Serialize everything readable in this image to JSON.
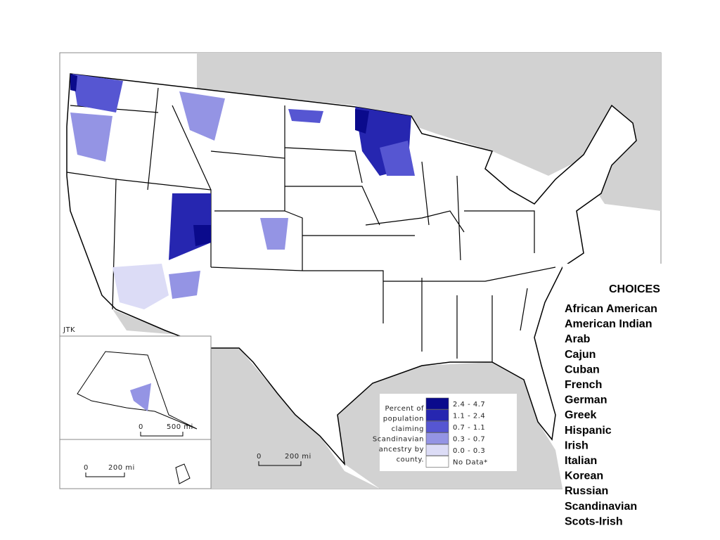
{
  "map": {
    "credit": "JTK",
    "legend": {
      "title_lines": [
        "Percent of",
        "population",
        "claiming",
        "Scandinavian",
        "ancestry by",
        "county."
      ],
      "items": [
        {
          "label": "2.4 - 4.7",
          "color": "#0a0a8c"
        },
        {
          "label": "1.1 - 2.4",
          "color": "#2626b0"
        },
        {
          "label": "0.7 - 1.1",
          "color": "#5656d2"
        },
        {
          "label": "0.3 - 0.7",
          "color": "#9494e4"
        },
        {
          "label": "0.0 - 0.3",
          "color": "#dcdcf6"
        },
        {
          "label": "No Data*",
          "color": "#ffffff"
        }
      ]
    },
    "scale_bars": [
      {
        "start": "0",
        "end": "500 mi"
      },
      {
        "start": "0",
        "end": "200 mi"
      },
      {
        "start": "0",
        "end": "200 mi"
      }
    ]
  },
  "choices": {
    "title": "CHOICES",
    "items": [
      "African American",
      "American Indian",
      "Arab",
      "Cajun",
      "Cuban",
      "French",
      "German",
      "Greek",
      "Hispanic",
      "Irish",
      "Italian",
      "Korean",
      "Russian",
      "Scandinavian",
      "Scots-Irish"
    ]
  }
}
